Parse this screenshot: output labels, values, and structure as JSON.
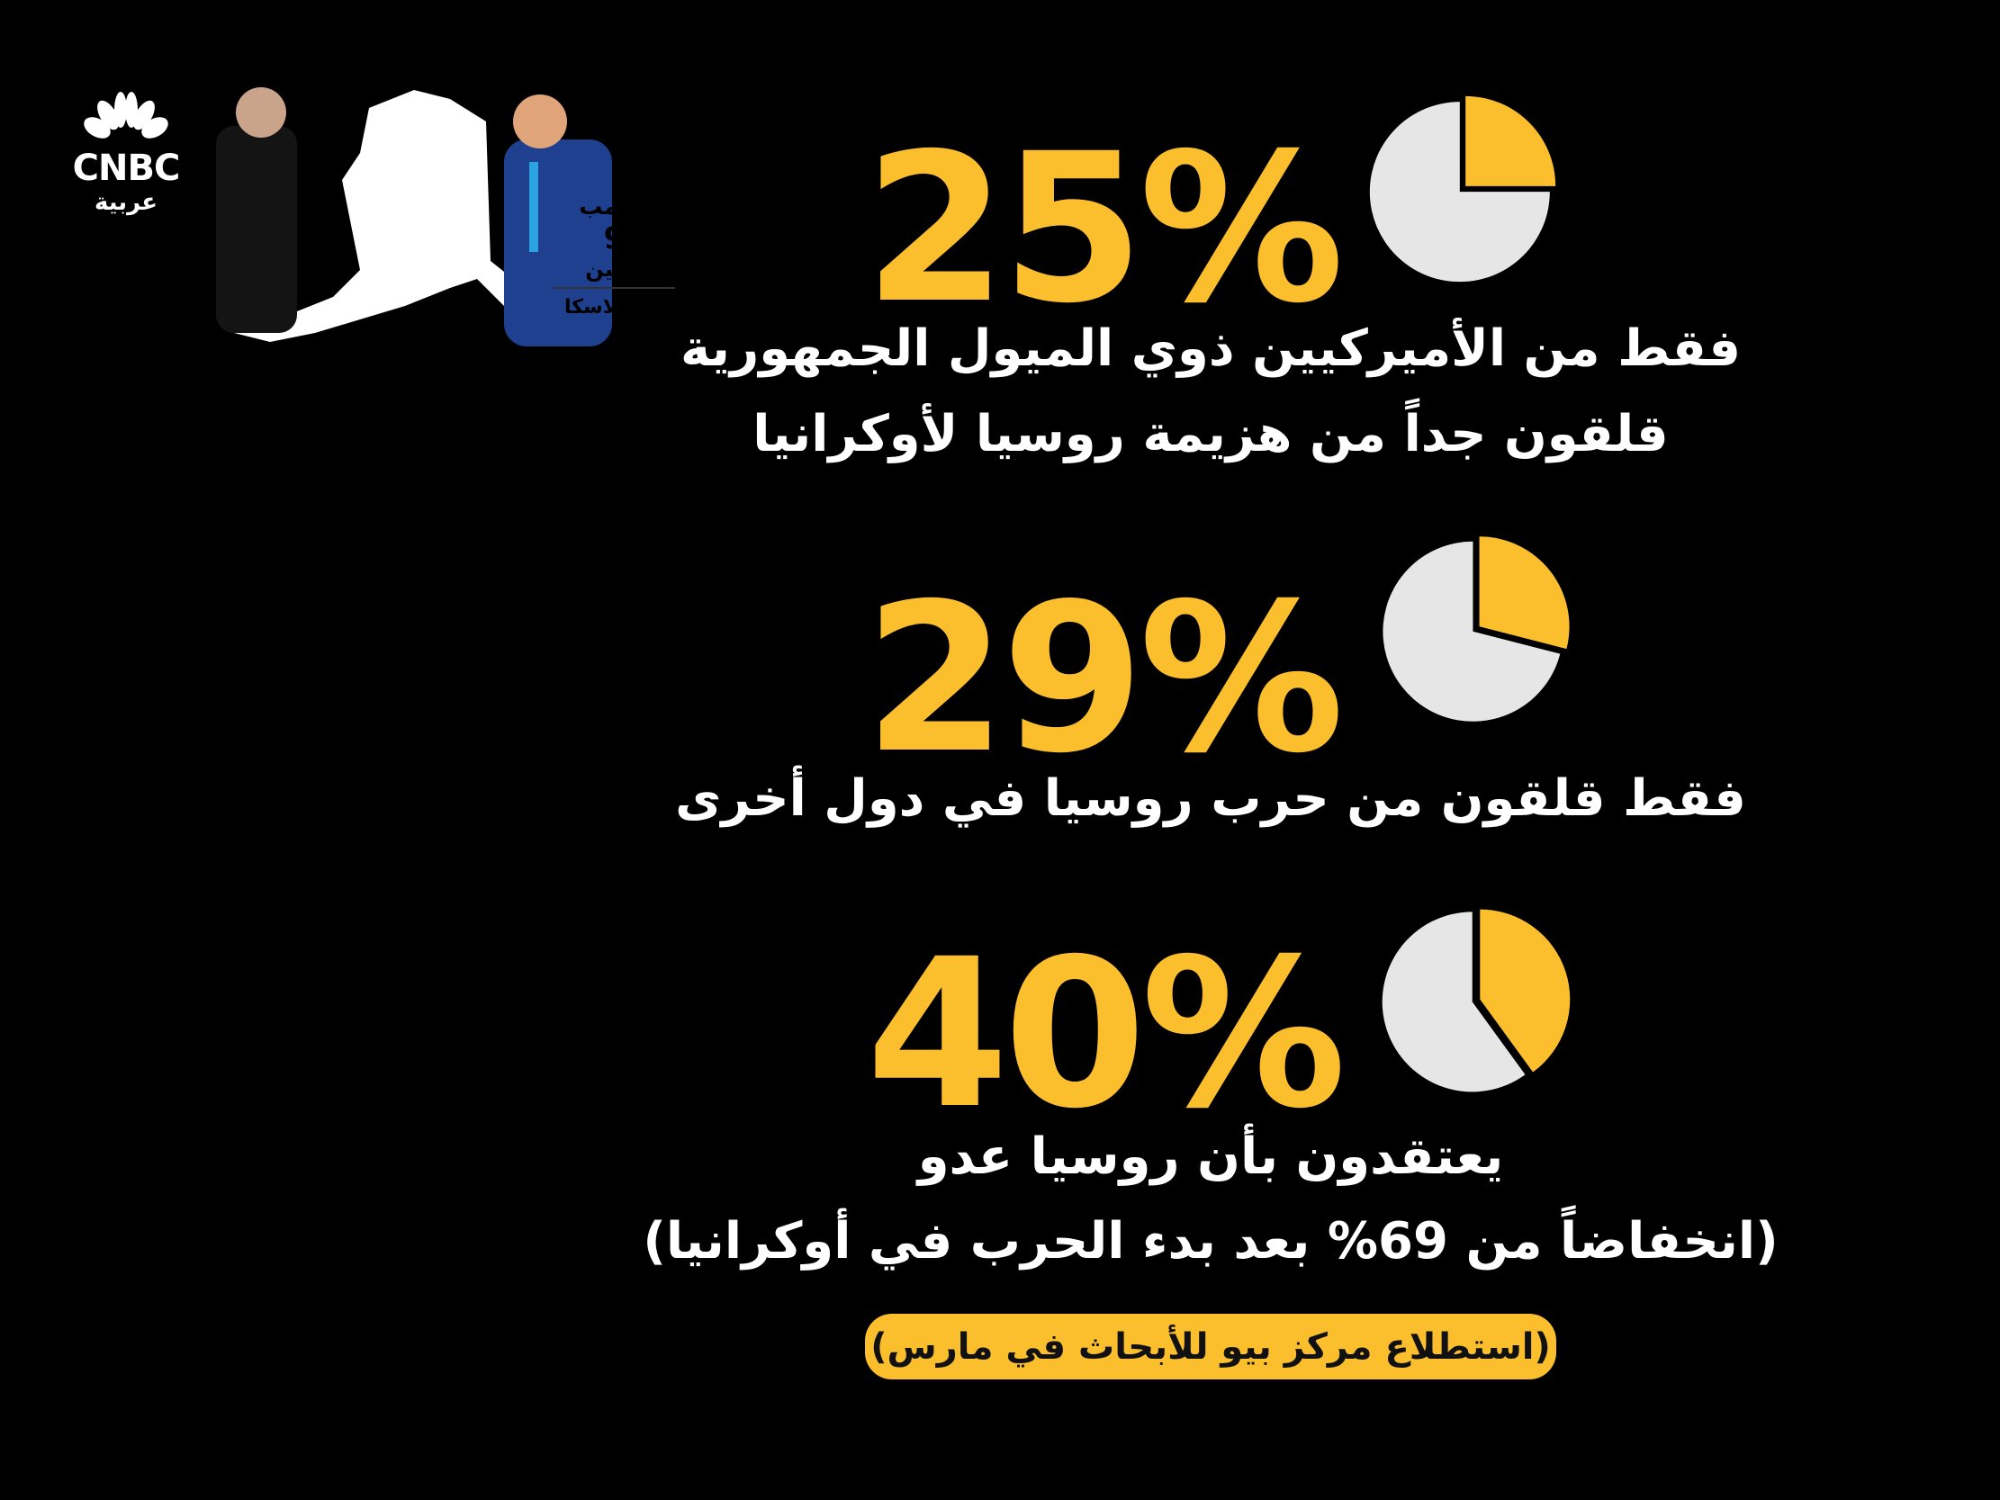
{
  "brand": {
    "logo_text": "CNBC",
    "logo_subtext": "عربية"
  },
  "header_graphic": {
    "line1": "ترامب",
    "line2": "9",
    "line3": "بوتين",
    "line4": "في ألاسكا"
  },
  "colors": {
    "accent": "#fbbf2e",
    "pie_base": "#e6e6e6",
    "background": "#000000",
    "text": "#ffffff"
  },
  "stats": [
    {
      "value_label": "25%",
      "percent": 25,
      "lines": [
        "فقط من الأميركيين ذوي الميول الجمهورية",
        "قلقون جداً من هزيمة روسيا لأوكرانيا"
      ]
    },
    {
      "value_label": "29%",
      "percent": 29,
      "lines": [
        "فقط قلقون من حرب روسيا في دول أخرى"
      ]
    },
    {
      "value_label": "40%",
      "percent": 40,
      "lines": [
        "يعتقدون بأن روسيا عدو",
        "(انخفاضاً من 69% بعد بدء الحرب في أوكرانيا)"
      ]
    }
  ],
  "source": "(استطلاع مركز بيو للأبحاث في مارس)"
}
